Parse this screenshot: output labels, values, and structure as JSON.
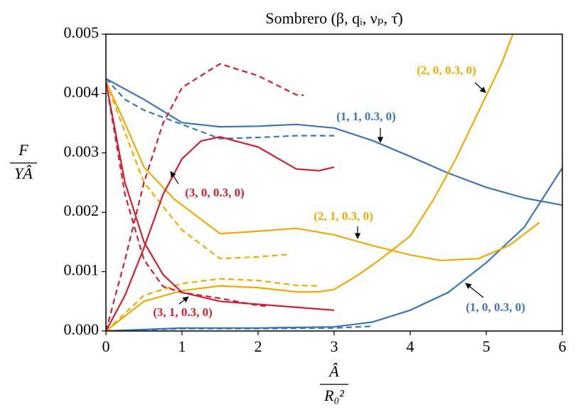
{
  "chart_data": {
    "type": "line",
    "title": "Sombrero (β, qᵢ, νₚ, τ̂)",
    "xlabel": {
      "numerator": "Â",
      "denominator": "R₀²"
    },
    "ylabel": {
      "numerator": "F",
      "denominator": "YÂ"
    },
    "xlim": [
      0,
      6
    ],
    "ylim": [
      0,
      0.005
    ],
    "xticks": [
      0,
      1,
      2,
      3,
      4,
      5,
      6
    ],
    "yticks": [
      {
        "value": 0,
        "label": "0.000"
      },
      {
        "value": 0.001,
        "label": "0.001"
      },
      {
        "value": 0.002,
        "label": "0.002"
      },
      {
        "value": 0.003,
        "label": "0.003"
      },
      {
        "value": 0.004,
        "label": "0.004"
      },
      {
        "value": 0.005,
        "label": "0.005"
      }
    ],
    "series": [
      {
        "color": "#3a76b8",
        "dashed": false,
        "x": [
          0,
          0.5,
          1,
          1.5,
          2,
          2.5,
          3,
          3.5,
          4,
          4.5,
          5,
          5.5,
          6
        ],
        "values": [
          0.00425,
          0.0039,
          0.00351,
          0.00344,
          0.00345,
          0.00348,
          0.00342,
          0.00321,
          0.00294,
          0.00266,
          0.00242,
          0.00224,
          0.00212
        ]
      },
      {
        "color": "#3a76b8",
        "dashed": true,
        "x": [
          0,
          0.25,
          0.5,
          1,
          1.5,
          2,
          2.5,
          3
        ],
        "values": [
          0.00425,
          0.0039,
          0.00372,
          0.00348,
          0.00324,
          0.00326,
          0.00329,
          0.00329
        ]
      },
      {
        "color": "#3a76b8",
        "dashed": false,
        "x": [
          0,
          1,
          2,
          3,
          3.5,
          4,
          4.5,
          5,
          5.5,
          6
        ],
        "values": [
          0,
          5e-05,
          5e-05,
          7e-05,
          0.00015,
          0.00035,
          0.00065,
          0.00115,
          0.00175,
          0.00275
        ]
      },
      {
        "color": "#3a76b8",
        "dashed": true,
        "x": [
          0,
          1,
          2,
          3,
          3.5
        ],
        "values": [
          0,
          4e-05,
          4e-05,
          5e-05,
          8e-05
        ]
      },
      {
        "color": "#f2a900",
        "dashed": false,
        "x": [
          0,
          0.25,
          0.5,
          0.9,
          1.5,
          2,
          2.5,
          3,
          3.5,
          4,
          4.4,
          4.9,
          5.3,
          5.7
        ],
        "values": [
          0.0042,
          0.0035,
          0.00276,
          0.00222,
          0.00164,
          0.00168,
          0.00173,
          0.00162,
          0.00144,
          0.00128,
          0.00119,
          0.00122,
          0.00144,
          0.00183
        ]
      },
      {
        "color": "#f2a900",
        "dashed": true,
        "x": [
          0,
          0.5,
          1,
          1.5,
          2,
          2.4
        ],
        "values": [
          0.0042,
          0.0025,
          0.0017,
          0.00122,
          0.00125,
          0.00129
        ]
      },
      {
        "color": "#f2a900",
        "dashed": false,
        "x": [
          0,
          0.5,
          1,
          1.5,
          2,
          2.5,
          2.8,
          3,
          3.3,
          3.6,
          4,
          4.3,
          4.6,
          4.9,
          5.2,
          5.35
        ],
        "values": [
          0,
          0.0005,
          0.00068,
          0.00076,
          0.00073,
          0.00066,
          0.00066,
          0.0007,
          0.00093,
          0.0012,
          0.0016,
          0.0022,
          0.0029,
          0.0037,
          0.0045,
          0.005
        ]
      },
      {
        "color": "#f2a900",
        "dashed": true,
        "x": [
          0,
          0.5,
          1,
          1.5,
          2,
          2.5,
          2.8
        ],
        "values": [
          0,
          0.0006,
          0.0008,
          0.00088,
          0.00085,
          0.00077,
          0.00076
        ]
      },
      {
        "color": "#d0202f",
        "dashed": false,
        "x": [
          0,
          0.25,
          0.5,
          0.75,
          1,
          1.25,
          1.5,
          2,
          2.5,
          2.8,
          3
        ],
        "values": [
          0,
          0.0006,
          0.0014,
          0.0023,
          0.0029,
          0.0032,
          0.00327,
          0.0031,
          0.00273,
          0.0027,
          0.00276
        ]
      },
      {
        "color": "#d0202f",
        "dashed": true,
        "x": [
          0,
          0.25,
          0.5,
          0.75,
          1,
          1.5,
          2,
          2.5,
          2.6
        ],
        "values": [
          0,
          0.0012,
          0.0025,
          0.0035,
          0.0041,
          0.0045,
          0.0043,
          0.00398,
          0.00397
        ]
      },
      {
        "color": "#d0202f",
        "dashed": false,
        "x": [
          0,
          0.25,
          0.5,
          0.75,
          1,
          1.5,
          2,
          2.5,
          3
        ],
        "values": [
          0.0042,
          0.0025,
          0.0015,
          0.00095,
          0.00065,
          0.0005,
          0.00045,
          0.0004,
          0.00035
        ]
      },
      {
        "color": "#d0202f",
        "dashed": true,
        "x": [
          0,
          0.25,
          0.5,
          0.75,
          1,
          1.5,
          2,
          2.1
        ],
        "values": [
          0.0042,
          0.0023,
          0.0012,
          0.00075,
          0.00065,
          0.00055,
          0.00043,
          0.00042
        ]
      }
    ],
    "annotations": [
      {
        "text": "(2, 0, 0.3, 0)",
        "color": "#f2a900"
      },
      {
        "text": "(1, 1, 0.3, 0)",
        "color": "#3a76b8"
      },
      {
        "text": "(3, 0, 0.3, 0)",
        "color": "#d0202f"
      },
      {
        "text": "(2, 1, 0.3, 0)",
        "color": "#f2a900"
      },
      {
        "text": "(1, 0, 0.3, 0)",
        "color": "#3a76b8"
      },
      {
        "text": "(3, 1, 0.3, 0)",
        "color": "#d0202f"
      }
    ]
  }
}
